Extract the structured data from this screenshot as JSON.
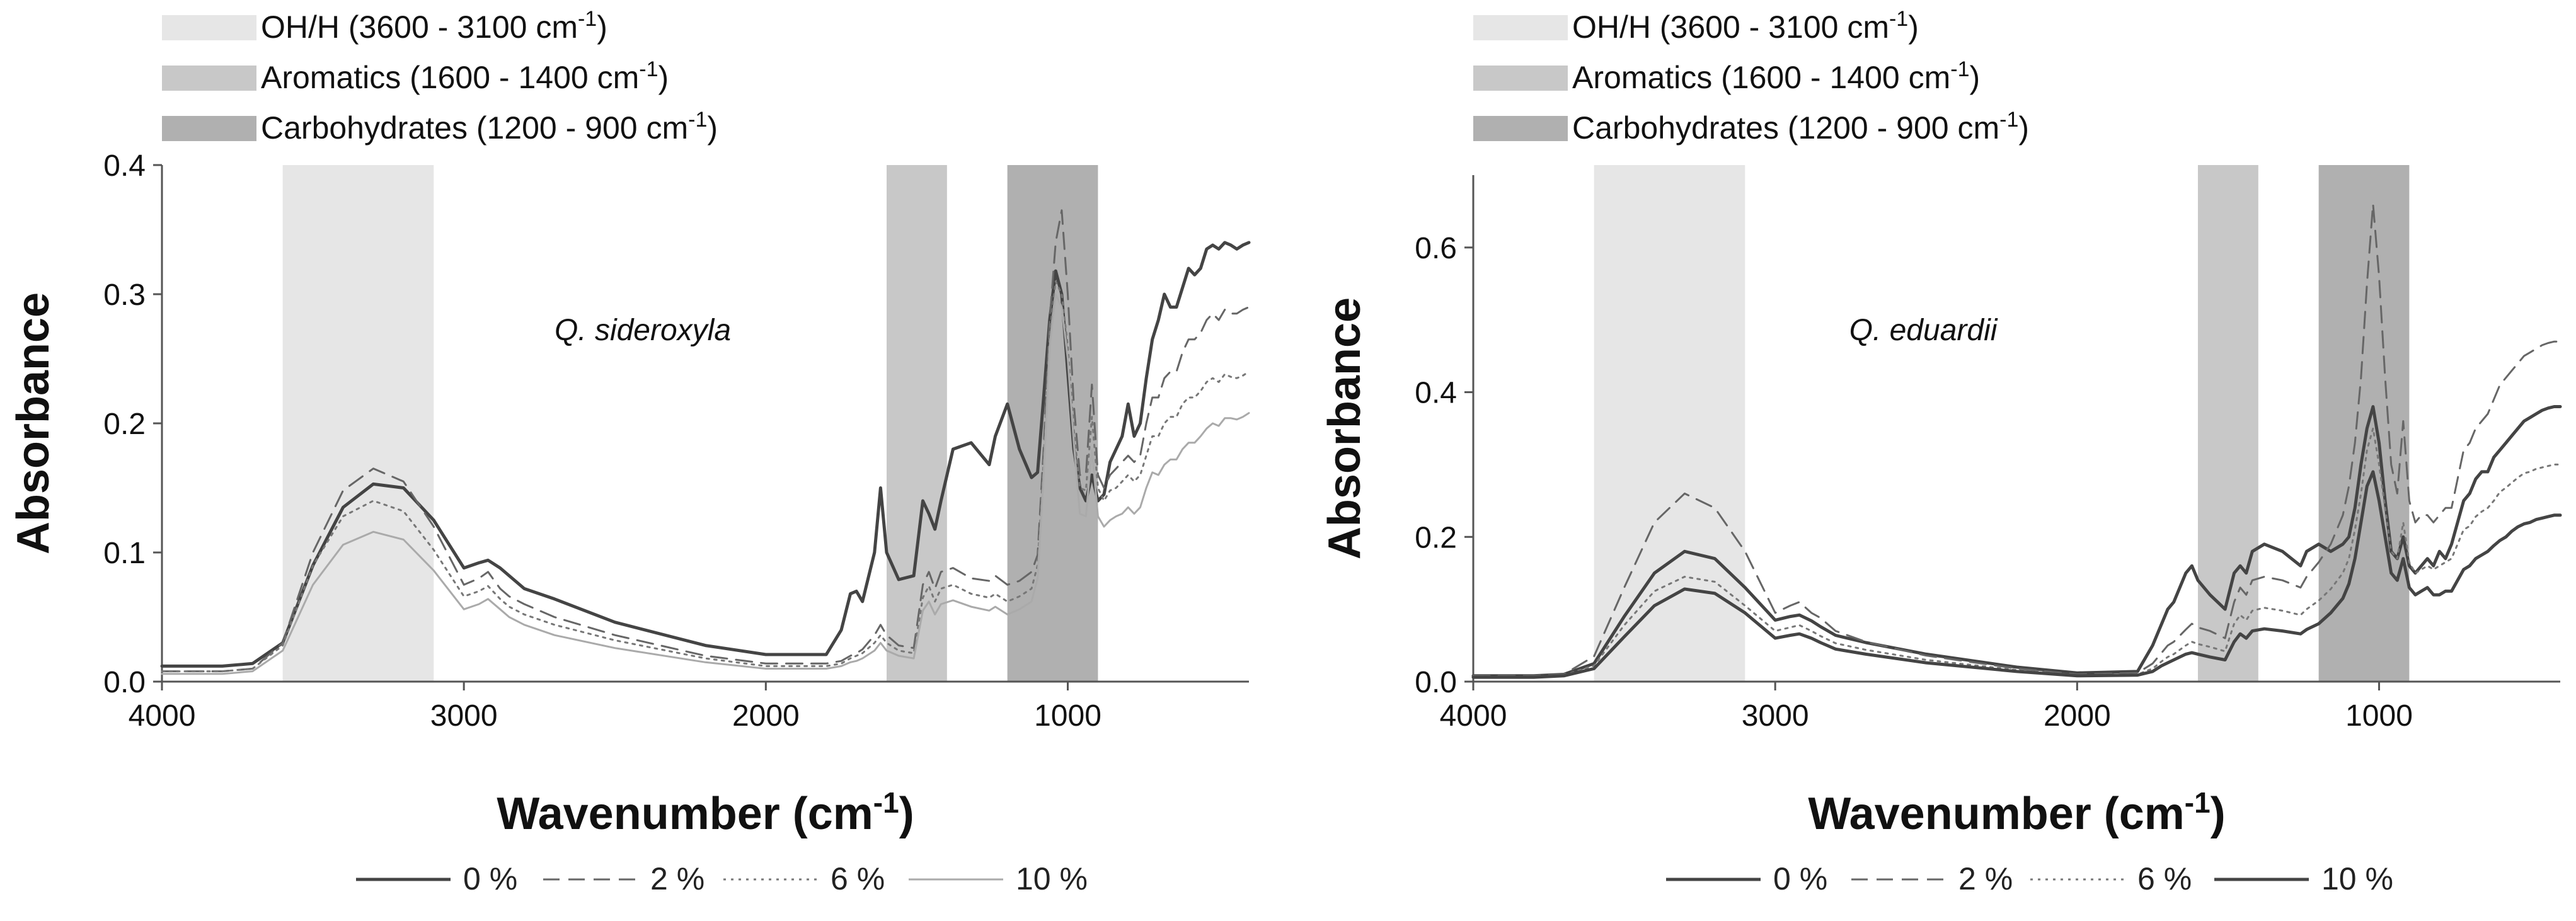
{
  "chart_data": [
    {
      "type": "line",
      "annotation": "Q. sideroxyla",
      "xlabel": "Wavenumber (cm",
      "xlabel_sup": "-1",
      "xlabel_close": ")",
      "ylabel": "Absorbance",
      "xlim": [
        4000,
        400
      ],
      "ylim": [
        0,
        0.4
      ],
      "xticks": [
        4000,
        3000,
        2000,
        1000
      ],
      "xtick_labels": [
        "4000",
        "3000",
        "2000",
        "1000"
      ],
      "yticks": [
        0,
        0.1,
        0.2,
        0.3,
        0.4
      ],
      "ytick_labels": [
        "0.0",
        "0.1",
        "0.2",
        "0.3",
        "0.4"
      ],
      "regions": [
        {
          "name": "oh",
          "label": "OH/H (3600 - 3100 cm",
          "sup": "-1",
          "close": ")",
          "x0": 3600,
          "x1": 3100,
          "color": "#e6e6e6"
        },
        {
          "name": "aromatics",
          "label": "Aromatics (1600 - 1400 cm",
          "sup": "-1",
          "close": ")",
          "x0": 1600,
          "x1": 1400,
          "color": "#c8c8c8"
        },
        {
          "name": "carbohydrates",
          "label": "Carbohydrates (1200 - 900 cm",
          "sup": "-1",
          "close": ")",
          "x0": 1200,
          "x1": 900,
          "color": "#b0b0b0"
        }
      ],
      "x": [
        4000,
        3800,
        3700,
        3600,
        3500,
        3400,
        3300,
        3200,
        3100,
        3000,
        2950,
        2920,
        2880,
        2850,
        2800,
        2700,
        2500,
        2200,
        2000,
        1800,
        1750,
        1720,
        1700,
        1680,
        1640,
        1620,
        1600,
        1560,
        1510,
        1480,
        1460,
        1440,
        1420,
        1380,
        1320,
        1260,
        1240,
        1200,
        1160,
        1120,
        1100,
        1080,
        1060,
        1040,
        1020,
        1000,
        980,
        960,
        940,
        920,
        900,
        880,
        860,
        840,
        820,
        800,
        780,
        760,
        740,
        720,
        700,
        680,
        660,
        640,
        620,
        600,
        580,
        560,
        540,
        520,
        500,
        480,
        460,
        440,
        420,
        400
      ],
      "series": [
        {
          "name": "0 %",
          "style": "solid",
          "color": "#444444",
          "width": 5,
          "values": [
            0.012,
            0.012,
            0.014,
            0.03,
            0.09,
            0.135,
            0.153,
            0.15,
            0.125,
            0.088,
            0.092,
            0.094,
            0.088,
            0.082,
            0.072,
            0.064,
            0.046,
            0.028,
            0.021,
            0.021,
            0.04,
            0.068,
            0.07,
            0.062,
            0.1,
            0.15,
            0.1,
            0.079,
            0.082,
            0.14,
            0.13,
            0.118,
            0.14,
            0.18,
            0.185,
            0.168,
            0.19,
            0.215,
            0.18,
            0.158,
            0.162,
            0.22,
            0.28,
            0.318,
            0.3,
            0.24,
            0.18,
            0.15,
            0.14,
            0.16,
            0.14,
            0.145,
            0.17,
            0.18,
            0.19,
            0.215,
            0.19,
            0.2,
            0.235,
            0.265,
            0.28,
            0.3,
            0.29,
            0.29,
            0.305,
            0.32,
            0.315,
            0.32,
            0.335,
            0.338,
            0.335,
            0.34,
            0.338,
            0.335,
            0.338,
            0.34
          ]
        },
        {
          "name": "2 %",
          "style": "dashed",
          "color": "#666666",
          "width": 3,
          "values": [
            0.008,
            0.008,
            0.01,
            0.03,
            0.1,
            0.148,
            0.165,
            0.155,
            0.12,
            0.075,
            0.08,
            0.085,
            0.072,
            0.066,
            0.06,
            0.05,
            0.036,
            0.02,
            0.014,
            0.014,
            0.016,
            0.02,
            0.022,
            0.025,
            0.036,
            0.044,
            0.036,
            0.028,
            0.026,
            0.075,
            0.085,
            0.072,
            0.085,
            0.088,
            0.08,
            0.078,
            0.082,
            0.075,
            0.078,
            0.085,
            0.098,
            0.18,
            0.28,
            0.34,
            0.365,
            0.3,
            0.215,
            0.16,
            0.16,
            0.23,
            0.16,
            0.15,
            0.16,
            0.165,
            0.17,
            0.175,
            0.17,
            0.175,
            0.2,
            0.22,
            0.22,
            0.235,
            0.24,
            0.24,
            0.255,
            0.265,
            0.265,
            0.27,
            0.28,
            0.285,
            0.28,
            0.288,
            0.285,
            0.285,
            0.288,
            0.29
          ]
        },
        {
          "name": "6 %",
          "style": "dotted",
          "color": "#777777",
          "width": 3,
          "values": [
            0.008,
            0.008,
            0.01,
            0.028,
            0.09,
            0.128,
            0.14,
            0.132,
            0.102,
            0.066,
            0.07,
            0.074,
            0.064,
            0.058,
            0.052,
            0.044,
            0.032,
            0.018,
            0.012,
            0.012,
            0.014,
            0.018,
            0.02,
            0.022,
            0.03,
            0.036,
            0.03,
            0.024,
            0.022,
            0.065,
            0.074,
            0.062,
            0.072,
            0.075,
            0.068,
            0.065,
            0.068,
            0.062,
            0.066,
            0.072,
            0.09,
            0.17,
            0.27,
            0.31,
            0.3,
            0.26,
            0.195,
            0.15,
            0.148,
            0.205,
            0.15,
            0.14,
            0.148,
            0.15,
            0.155,
            0.16,
            0.155,
            0.16,
            0.175,
            0.19,
            0.19,
            0.2,
            0.205,
            0.205,
            0.215,
            0.22,
            0.22,
            0.225,
            0.232,
            0.235,
            0.232,
            0.238,
            0.236,
            0.235,
            0.237,
            0.24
          ]
        },
        {
          "name": "10 %",
          "style": "solid",
          "color": "#aaaaaa",
          "width": 3,
          "values": [
            0.006,
            0.006,
            0.008,
            0.024,
            0.075,
            0.106,
            0.116,
            0.11,
            0.086,
            0.056,
            0.06,
            0.064,
            0.056,
            0.05,
            0.044,
            0.036,
            0.026,
            0.015,
            0.01,
            0.01,
            0.012,
            0.015,
            0.016,
            0.018,
            0.024,
            0.03,
            0.024,
            0.02,
            0.018,
            0.055,
            0.062,
            0.052,
            0.06,
            0.063,
            0.058,
            0.055,
            0.058,
            0.052,
            0.056,
            0.062,
            0.08,
            0.16,
            0.26,
            0.3,
            0.29,
            0.25,
            0.185,
            0.13,
            0.128,
            0.18,
            0.128,
            0.12,
            0.125,
            0.128,
            0.13,
            0.135,
            0.13,
            0.135,
            0.15,
            0.162,
            0.16,
            0.168,
            0.172,
            0.172,
            0.18,
            0.185,
            0.185,
            0.19,
            0.196,
            0.2,
            0.198,
            0.204,
            0.204,
            0.203,
            0.205,
            0.208
          ]
        }
      ]
    },
    {
      "type": "line",
      "annotation": "Q. eduardii",
      "xlabel": "Wavenumber (cm",
      "xlabel_sup": "-1",
      "xlabel_close": ")",
      "ylabel": "Absorbance",
      "xlim": [
        4000,
        400
      ],
      "ylim": [
        0,
        0.7
      ],
      "xticks": [
        4000,
        3000,
        2000,
        1000
      ],
      "xtick_labels": [
        "4000",
        "3000",
        "2000",
        "1000"
      ],
      "yticks": [
        0,
        0.2,
        0.4,
        0.6
      ],
      "ytick_labels": [
        "0.0",
        "0.2",
        "0.4",
        "0.6"
      ],
      "regions": [
        {
          "name": "oh",
          "label": "OH/H (3600 - 3100 cm",
          "sup": "-1",
          "close": ")",
          "x0": 3600,
          "x1": 3100,
          "color": "#e6e6e6"
        },
        {
          "name": "aromatics",
          "label": "Aromatics (1600 - 1400 cm",
          "sup": "-1",
          "close": ")",
          "x0": 1600,
          "x1": 1400,
          "color": "#c8c8c8"
        },
        {
          "name": "carbohydrates",
          "label": "Carbohydrates (1200 - 900 cm",
          "sup": "-1",
          "close": ")",
          "x0": 1200,
          "x1": 900,
          "color": "#b0b0b0"
        }
      ],
      "x": [
        4000,
        3800,
        3700,
        3600,
        3500,
        3400,
        3300,
        3200,
        3100,
        3000,
        2950,
        2920,
        2880,
        2850,
        2800,
        2700,
        2500,
        2200,
        2000,
        1800,
        1750,
        1720,
        1700,
        1680,
        1640,
        1620,
        1600,
        1560,
        1510,
        1480,
        1460,
        1440,
        1420,
        1380,
        1320,
        1260,
        1240,
        1200,
        1160,
        1120,
        1100,
        1080,
        1060,
        1040,
        1020,
        1000,
        980,
        960,
        940,
        920,
        900,
        880,
        860,
        840,
        820,
        800,
        780,
        760,
        740,
        720,
        700,
        680,
        660,
        640,
        620,
        600,
        580,
        560,
        540,
        520,
        500,
        480,
        460,
        440,
        420,
        400
      ],
      "series": [
        {
          "name": "0 %",
          "style": "solid",
          "color": "#444444",
          "width": 5,
          "values": [
            0.008,
            0.008,
            0.01,
            0.025,
            0.09,
            0.15,
            0.18,
            0.17,
            0.13,
            0.085,
            0.09,
            0.092,
            0.084,
            0.076,
            0.064,
            0.054,
            0.038,
            0.02,
            0.012,
            0.014,
            0.05,
            0.08,
            0.1,
            0.11,
            0.15,
            0.16,
            0.14,
            0.12,
            0.1,
            0.15,
            0.16,
            0.15,
            0.18,
            0.19,
            0.18,
            0.16,
            0.18,
            0.19,
            0.18,
            0.19,
            0.2,
            0.24,
            0.3,
            0.35,
            0.38,
            0.33,
            0.25,
            0.18,
            0.17,
            0.2,
            0.16,
            0.15,
            0.16,
            0.17,
            0.16,
            0.18,
            0.17,
            0.19,
            0.22,
            0.25,
            0.26,
            0.28,
            0.29,
            0.29,
            0.31,
            0.32,
            0.33,
            0.34,
            0.35,
            0.36,
            0.365,
            0.37,
            0.375,
            0.378,
            0.38,
            0.38
          ]
        },
        {
          "name": "2 %",
          "style": "dashed",
          "color": "#666666",
          "width": 3,
          "values": [
            0.008,
            0.008,
            0.01,
            0.035,
            0.13,
            0.22,
            0.26,
            0.24,
            0.18,
            0.095,
            0.105,
            0.11,
            0.095,
            0.088,
            0.07,
            0.055,
            0.036,
            0.018,
            0.01,
            0.012,
            0.025,
            0.04,
            0.05,
            0.055,
            0.072,
            0.08,
            0.075,
            0.07,
            0.06,
            0.11,
            0.13,
            0.12,
            0.14,
            0.145,
            0.14,
            0.13,
            0.145,
            0.165,
            0.19,
            0.23,
            0.27,
            0.33,
            0.42,
            0.55,
            0.66,
            0.56,
            0.42,
            0.3,
            0.26,
            0.36,
            0.25,
            0.22,
            0.23,
            0.23,
            0.22,
            0.23,
            0.24,
            0.24,
            0.28,
            0.32,
            0.33,
            0.35,
            0.36,
            0.37,
            0.39,
            0.41,
            0.42,
            0.43,
            0.44,
            0.45,
            0.455,
            0.46,
            0.465,
            0.468,
            0.47,
            0.47
          ]
        },
        {
          "name": "6 %",
          "style": "dotted",
          "color": "#777777",
          "width": 3,
          "values": [
            0.007,
            0.007,
            0.009,
            0.022,
            0.078,
            0.125,
            0.145,
            0.138,
            0.105,
            0.07,
            0.075,
            0.078,
            0.07,
            0.063,
            0.053,
            0.044,
            0.03,
            0.016,
            0.009,
            0.01,
            0.018,
            0.028,
            0.034,
            0.038,
            0.05,
            0.055,
            0.052,
            0.048,
            0.042,
            0.08,
            0.092,
            0.085,
            0.098,
            0.102,
            0.098,
            0.092,
            0.1,
            0.112,
            0.128,
            0.15,
            0.17,
            0.21,
            0.26,
            0.32,
            0.35,
            0.3,
            0.24,
            0.18,
            0.17,
            0.22,
            0.165,
            0.15,
            0.155,
            0.16,
            0.155,
            0.16,
            0.165,
            0.17,
            0.19,
            0.21,
            0.215,
            0.228,
            0.235,
            0.24,
            0.25,
            0.262,
            0.268,
            0.275,
            0.282,
            0.288,
            0.29,
            0.294,
            0.296,
            0.298,
            0.3,
            0.3
          ]
        },
        {
          "name": "10 %",
          "style": "solid",
          "color": "#444444",
          "width": 5,
          "values": [
            0.006,
            0.006,
            0.008,
            0.018,
            0.062,
            0.105,
            0.128,
            0.122,
            0.095,
            0.06,
            0.064,
            0.066,
            0.06,
            0.054,
            0.045,
            0.038,
            0.026,
            0.014,
            0.008,
            0.009,
            0.014,
            0.022,
            0.026,
            0.03,
            0.038,
            0.04,
            0.038,
            0.034,
            0.03,
            0.055,
            0.066,
            0.06,
            0.07,
            0.073,
            0.07,
            0.066,
            0.072,
            0.08,
            0.095,
            0.115,
            0.135,
            0.17,
            0.22,
            0.27,
            0.29,
            0.25,
            0.2,
            0.15,
            0.14,
            0.17,
            0.13,
            0.12,
            0.125,
            0.13,
            0.12,
            0.12,
            0.125,
            0.125,
            0.14,
            0.155,
            0.16,
            0.17,
            0.175,
            0.18,
            0.188,
            0.195,
            0.2,
            0.208,
            0.214,
            0.218,
            0.22,
            0.224,
            0.226,
            0.228,
            0.23,
            0.23
          ]
        }
      ]
    }
  ]
}
